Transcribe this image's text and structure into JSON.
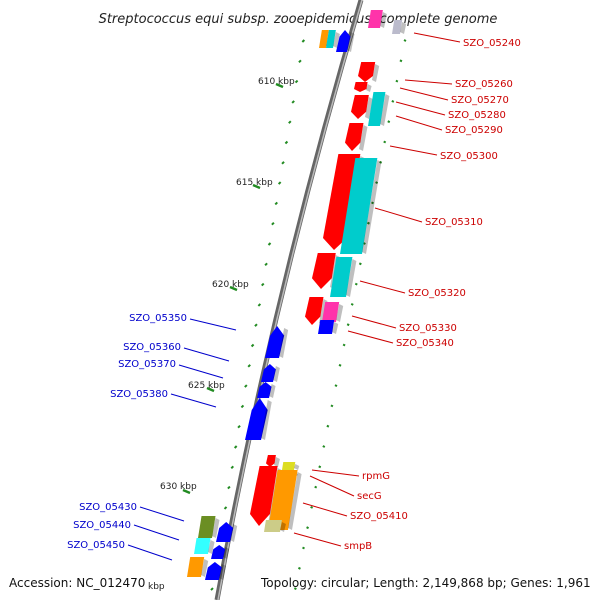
{
  "title": "Streptococcus equi subsp. zooepidemicus, complete genome",
  "footer": {
    "accession": "Accession: NC_012470",
    "kbp_tail": "kbp",
    "topology": "Topology: circular; Length: 2,149,868 bp; Genes: 1,961"
  },
  "colors": {
    "forward": "#ff0000",
    "reverse": "#0000ff",
    "cyan": "#00cccc",
    "magenta": "#ff33aa",
    "orange": "#ff9900",
    "olive": "#6b8e23",
    "yellow": "#dddd22",
    "backbone": "#888888",
    "tick": "#228b22"
  },
  "kbp_labels": [
    "610 kbp",
    "615 kbp",
    "620 kbp",
    "625 kbp",
    "630 kbp"
  ],
  "gene_labels_right": [
    "SZO_05240",
    "SZO_05260",
    "SZO_05270",
    "SZO_05280",
    "SZO_05290",
    "SZO_05300",
    "SZO_05310",
    "SZO_05320",
    "SZO_05330",
    "SZO_05340",
    "rpmG",
    "secG",
    "SZO_05410",
    "smpB"
  ],
  "gene_labels_left": [
    "SZO_05350",
    "SZO_05360",
    "SZO_05370",
    "SZO_05380",
    "SZO_05430",
    "SZO_05440",
    "SZO_05450"
  ]
}
